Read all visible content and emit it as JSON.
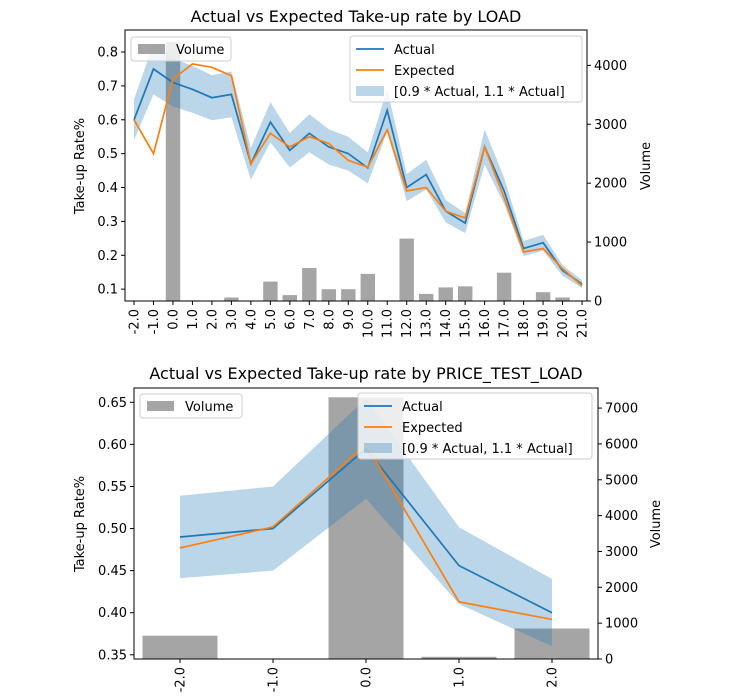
{
  "chart_data": [
    {
      "type": "bar+line",
      "title": "Actual vs Expected Take-up rate by LOAD",
      "xlabel": "",
      "ylabel": "Take-up Rate%",
      "y2label": "Volume",
      "categories": [
        "-2.0",
        "-1.0",
        "0.0",
        "1.0",
        "2.0",
        "3.0",
        "4.0",
        "5.0",
        "6.0",
        "7.0",
        "8.0",
        "9.0",
        "10.0",
        "11.0",
        "12.0",
        "13.0",
        "14.0",
        "15.0",
        "16.0",
        "17.0",
        "18.0",
        "19.0",
        "20.0",
        "21.0"
      ],
      "ylim": [
        0.065,
        0.865
      ],
      "y2lim": [
        0,
        4600
      ],
      "yticks": [
        "0.1",
        "0.2",
        "0.3",
        "0.4",
        "0.5",
        "0.6",
        "0.7",
        "0.8"
      ],
      "y2ticks": [
        "0",
        "1000",
        "2000",
        "3000",
        "4000"
      ],
      "series": [
        {
          "name": "Volume",
          "kind": "bar",
          "axis": "right",
          "color": "#7f7f7f",
          "values": [
            0,
            0,
            4400,
            10,
            5,
            60,
            5,
            330,
            100,
            560,
            200,
            200,
            460,
            10,
            1060,
            120,
            230,
            250,
            0,
            480,
            10,
            150,
            60,
            10
          ]
        },
        {
          "name": "Actual",
          "kind": "line",
          "axis": "left",
          "color": "#1f77b4",
          "values": [
            0.6,
            0.75,
            0.71,
            0.69,
            0.665,
            0.675,
            0.47,
            0.593,
            0.51,
            0.56,
            0.52,
            0.5,
            0.458,
            0.628,
            0.4,
            0.438,
            0.33,
            0.295,
            0.52,
            0.39,
            0.22,
            0.237,
            0.155,
            0.115
          ]
        },
        {
          "name": "Expected",
          "kind": "line",
          "axis": "left",
          "color": "#ff7f0e",
          "values": [
            0.6,
            0.5,
            0.72,
            0.765,
            0.755,
            0.73,
            0.47,
            0.56,
            0.52,
            0.55,
            0.53,
            0.48,
            0.46,
            0.57,
            0.39,
            0.4,
            0.33,
            0.31,
            0.52,
            0.37,
            0.21,
            0.22,
            0.16,
            0.11
          ]
        },
        {
          "name": "[0.9 * Actual, 1.1 * Actual]",
          "kind": "band",
          "axis": "left",
          "color": "#1f77b4",
          "alpha": 0.3,
          "of": "Actual",
          "low": 0.9,
          "high": 1.1
        }
      ],
      "legends": [
        {
          "placement": "upper-left",
          "entries": [
            "Volume"
          ]
        },
        {
          "placement": "upper-right",
          "entries": [
            "Actual",
            "Expected",
            "[0.9 * Actual, 1.1 * Actual]"
          ]
        }
      ]
    },
    {
      "type": "bar+line",
      "title": "Actual vs Expected Take-up rate by PRICE_TEST_LOAD",
      "xlabel": "",
      "ylabel": "Take-up Rate%",
      "y2label": "Volume",
      "categories": [
        "-2.0",
        "-1.0",
        "0.0",
        "1.0",
        "2.0"
      ],
      "ylim": [
        0.345,
        0.667
      ],
      "y2lim": [
        0,
        7560
      ],
      "yticks": [
        "0.35",
        "0.40",
        "0.45",
        "0.50",
        "0.55",
        "0.60",
        "0.65"
      ],
      "y2ticks": [
        "0",
        "1000",
        "2000",
        "3000",
        "4000",
        "5000",
        "6000",
        "7000"
      ],
      "series": [
        {
          "name": "Volume",
          "kind": "bar",
          "axis": "right",
          "color": "#7f7f7f",
          "values": [
            650,
            0,
            7300,
            60,
            850
          ]
        },
        {
          "name": "Actual",
          "kind": "line",
          "axis": "left",
          "color": "#1f77b4",
          "values": [
            0.49,
            0.5,
            0.595,
            0.456,
            0.4
          ]
        },
        {
          "name": "Expected",
          "kind": "line",
          "axis": "left",
          "color": "#ff7f0e",
          "values": [
            0.477,
            0.502,
            0.6,
            0.413,
            0.392
          ]
        },
        {
          "name": "[0.9 * Actual, 1.1 * Actual]",
          "kind": "band",
          "axis": "left",
          "color": "#1f77b4",
          "alpha": 0.3,
          "of": "Actual",
          "low": 0.9,
          "high": 1.1
        }
      ],
      "legends": [
        {
          "placement": "upper-left",
          "entries": [
            "Volume"
          ]
        },
        {
          "placement": "upper-right",
          "entries": [
            "Actual",
            "Expected",
            "[0.9 * Actual, 1.1 * Actual]"
          ]
        }
      ]
    }
  ]
}
